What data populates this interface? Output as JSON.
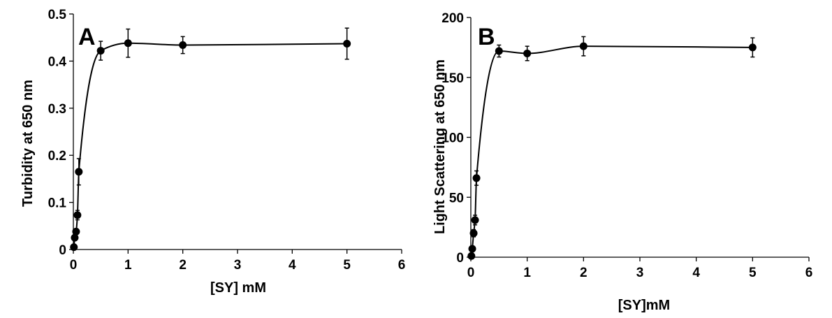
{
  "chart_data": [
    {
      "type": "scatter",
      "panel_label": "A",
      "xlabel": "[SY] mM",
      "ylabel": "Turbidity at 650 nm",
      "xlim": [
        0,
        6
      ],
      "ylim": [
        0,
        0.5
      ],
      "x_ticks": [
        "0",
        "1",
        "2",
        "3",
        "4",
        "5",
        "6"
      ],
      "y_ticks": [
        "0",
        "0.1",
        "0.2",
        "0.3",
        "0.4",
        "0.5"
      ],
      "series": [
        {
          "x": [
            0.01,
            0.025,
            0.05,
            0.075,
            0.1,
            0.5,
            1,
            2,
            5
          ],
          "y": [
            0.005,
            0.025,
            0.038,
            0.073,
            0.165,
            0.422,
            0.438,
            0.434,
            0.437
          ],
          "error": [
            0.003,
            0.005,
            0.006,
            0.01,
            0.028,
            0.02,
            0.03,
            0.018,
            0.033
          ]
        }
      ],
      "smooth_line": true,
      "grid": false,
      "legend": "none"
    },
    {
      "type": "scatter",
      "panel_label": "B",
      "xlabel": "[SY]mM",
      "ylabel": "Light Scattering at 650 nm",
      "xlim": [
        0,
        6
      ],
      "ylim": [
        0,
        200
      ],
      "x_ticks": [
        "0",
        "1",
        "2",
        "3",
        "4",
        "5",
        "6"
      ],
      "y_ticks": [
        "0",
        "50",
        "100",
        "150",
        "200"
      ],
      "series": [
        {
          "x": [
            0.01,
            0.025,
            0.05,
            0.075,
            0.1,
            0.5,
            1,
            2,
            5
          ],
          "y": [
            1,
            7,
            20,
            31,
            66,
            172,
            170,
            176,
            175
          ],
          "error": [
            1,
            2,
            3,
            4,
            6,
            5,
            6,
            8,
            8
          ]
        }
      ],
      "smooth_line": true,
      "grid": false,
      "legend": "none"
    }
  ]
}
